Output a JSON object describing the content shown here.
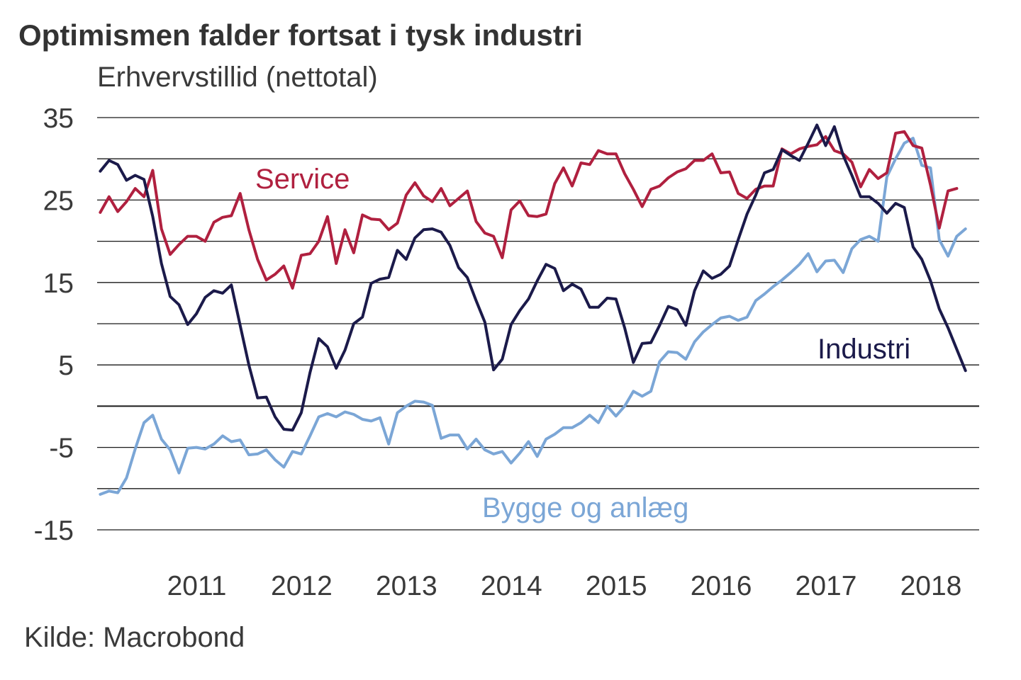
{
  "chart_data": {
    "type": "line",
    "title": "Optimismen falder fortsat i tysk industri",
    "ylabel": "Erhvervstillid (nettotal)",
    "source": "Kilde: Macrobond",
    "ylim": [
      -15,
      35
    ],
    "yticks": [
      35,
      25,
      15,
      5,
      -5,
      -15
    ],
    "xlim": [
      2010.55,
      2018.96
    ],
    "xticks": [
      {
        "x": 2011.0,
        "label": "2011"
      },
      {
        "x": 2012.0,
        "label": "2012"
      },
      {
        "x": 2013.0,
        "label": "2013"
      },
      {
        "x": 2014.0,
        "label": "2014"
      },
      {
        "x": 2015.0,
        "label": "2015"
      },
      {
        "x": 2016.0,
        "label": "2016"
      },
      {
        "x": 2017.0,
        "label": "2017"
      },
      {
        "x": 2018.0,
        "label": "2018"
      }
    ],
    "x_start": 2010.58,
    "x_step": 0.08333,
    "series": [
      {
        "name": "Service",
        "label": "Service",
        "color": "#b0203f",
        "values": [
          23.5,
          25.4,
          23.6,
          24.8,
          26.4,
          25.4,
          28.6,
          21.5,
          18.4,
          19.6,
          20.6,
          20.6,
          20.0,
          22.3,
          22.9,
          23.1,
          25.8,
          21.4,
          17.8,
          15.3,
          16.0,
          17.0,
          14.3,
          18.3,
          18.5,
          20.0,
          23.0,
          17.3,
          21.4,
          18.6,
          23.2,
          22.7,
          22.6,
          21.4,
          22.2,
          25.6,
          27.1,
          25.5,
          24.8,
          26.4,
          24.3,
          25.2,
          26.1,
          22.4,
          21.0,
          20.6,
          18.0,
          23.8,
          24.9,
          23.1,
          23.0,
          23.3,
          27.0,
          28.9,
          26.7,
          29.5,
          29.3,
          31.0,
          30.6,
          30.6,
          28.2,
          26.3,
          24.2,
          26.3,
          26.7,
          27.7,
          28.4,
          28.8,
          29.8,
          29.8,
          30.6,
          28.3,
          28.4,
          25.8,
          25.2,
          26.3,
          26.7,
          26.7,
          31.2,
          30.6,
          31.2,
          31.5,
          31.7,
          32.7,
          31.0,
          30.6,
          29.6,
          26.6,
          28.7,
          27.6,
          28.3,
          33.1,
          33.3,
          31.6,
          31.3,
          26.8,
          21.6,
          26.1,
          26.4
        ]
      },
      {
        "name": "Industri",
        "label": "Industri",
        "color": "#1b1a4a",
        "values": [
          28.5,
          29.8,
          29.3,
          27.4,
          28.0,
          27.5,
          23.0,
          17.3,
          13.3,
          12.3,
          9.9,
          11.2,
          13.2,
          14.0,
          13.7,
          14.7,
          9.8,
          5.0,
          1.0,
          1.1,
          -1.3,
          -2.8,
          -2.9,
          -0.8,
          4.1,
          8.2,
          7.2,
          4.6,
          6.8,
          10.0,
          10.8,
          14.9,
          15.4,
          15.6,
          18.9,
          17.8,
          20.4,
          21.4,
          21.5,
          21.1,
          19.5,
          16.8,
          15.6,
          12.8,
          10.2,
          4.4,
          5.7,
          9.9,
          11.6,
          13.0,
          15.2,
          17.2,
          16.7,
          14.0,
          14.8,
          14.2,
          12.0,
          12.0,
          13.1,
          13.0,
          9.5,
          5.3,
          7.6,
          7.7,
          9.8,
          12.1,
          11.7,
          9.8,
          14.0,
          16.4,
          15.5,
          16.0,
          17.0,
          20.2,
          23.3,
          25.6,
          28.3,
          28.7,
          31.1,
          30.4,
          29.8,
          31.9,
          34.1,
          31.6,
          33.9,
          30.4,
          28.0,
          25.4,
          25.4,
          24.6,
          23.4,
          24.6,
          24.1,
          19.3,
          17.8,
          15.2,
          11.8,
          9.5,
          6.9,
          4.3
        ]
      },
      {
        "name": "Bygge og anlæg",
        "label": "Bygge og anlæg",
        "color": "#7ba6d6",
        "values": [
          -10.7,
          -10.3,
          -10.5,
          -8.7,
          -5.2,
          -2.0,
          -1.1,
          -4.0,
          -5.3,
          -8.1,
          -5.1,
          -5.0,
          -5.2,
          -4.6,
          -3.6,
          -4.3,
          -4.1,
          -5.9,
          -5.8,
          -5.3,
          -6.5,
          -7.4,
          -5.5,
          -5.8,
          -3.6,
          -1.3,
          -0.9,
          -1.3,
          -0.7,
          -1.0,
          -1.6,
          -1.8,
          -1.4,
          -4.6,
          -0.8,
          0.0,
          0.6,
          0.5,
          0.1,
          -3.9,
          -3.5,
          -3.5,
          -5.2,
          -4.0,
          -5.3,
          -5.8,
          -5.5,
          -6.9,
          -5.7,
          -4.3,
          -6.1,
          -4.0,
          -3.4,
          -2.6,
          -2.6,
          -2.0,
          -1.1,
          -2.0,
          0.0,
          -1.2,
          0.0,
          1.8,
          1.2,
          1.8,
          5.4,
          6.6,
          6.5,
          5.7,
          7.8,
          9.0,
          9.9,
          10.7,
          10.9,
          10.4,
          10.8,
          12.8,
          13.6,
          14.5,
          15.3,
          16.2,
          17.2,
          18.5,
          16.3,
          17.6,
          17.7,
          16.2,
          19.1,
          20.2,
          20.6,
          20.0,
          27.8,
          30.0,
          31.9,
          32.5,
          29.2,
          28.9,
          20.2,
          18.2,
          20.6,
          21.5
        ]
      }
    ]
  }
}
